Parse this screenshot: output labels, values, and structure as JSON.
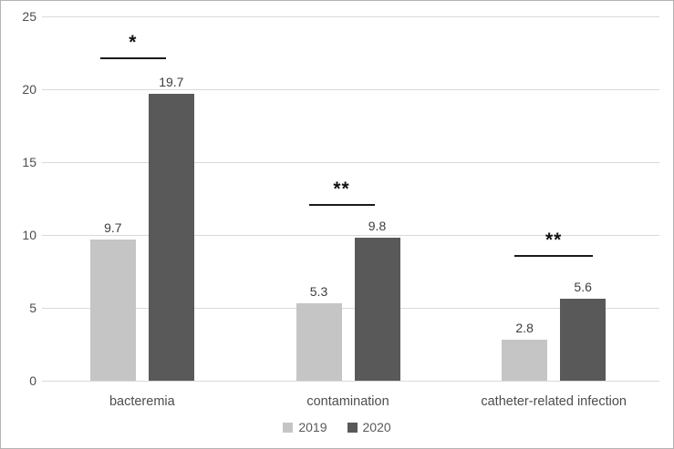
{
  "figure": {
    "background": "#ffffff",
    "border_color": "#b3b3b3"
  },
  "chart_data": {
    "type": "bar",
    "title": "",
    "xlabel": "",
    "ylabel": "",
    "categories": [
      "bacteremia",
      "contamination",
      "catheter-related infection"
    ],
    "series": [
      {
        "name": "2019",
        "color": "#c5c5c5",
        "values": [
          9.7,
          5.3,
          2.8
        ]
      },
      {
        "name": "2020",
        "color": "#595959",
        "values": [
          19.7,
          9.8,
          5.6
        ]
      }
    ],
    "value_label_decimals": 1,
    "ylim": [
      0,
      25
    ],
    "yticks": [
      0,
      5,
      10,
      15,
      20,
      25
    ],
    "grid": true,
    "gridline_color": "#d9d9d9",
    "tick_text_color": "#4d4d4d",
    "value_text_color": "#3d3d3d",
    "category_text_color": "#4d4d4d",
    "legend_text_color": "#595959",
    "legend_position": "bottom",
    "annotations": [
      {
        "category_index": 0,
        "text": "*",
        "line_y_value": 22.2,
        "center_dx": -10,
        "half_width": 36
      },
      {
        "category_index": 1,
        "text": "**",
        "line_y_value": 12.1,
        "center_dx": -7,
        "half_width": 36
      },
      {
        "category_index": 2,
        "text": "**",
        "line_y_value": 8.6,
        "center_dx": 0,
        "half_width": 43
      }
    ]
  }
}
